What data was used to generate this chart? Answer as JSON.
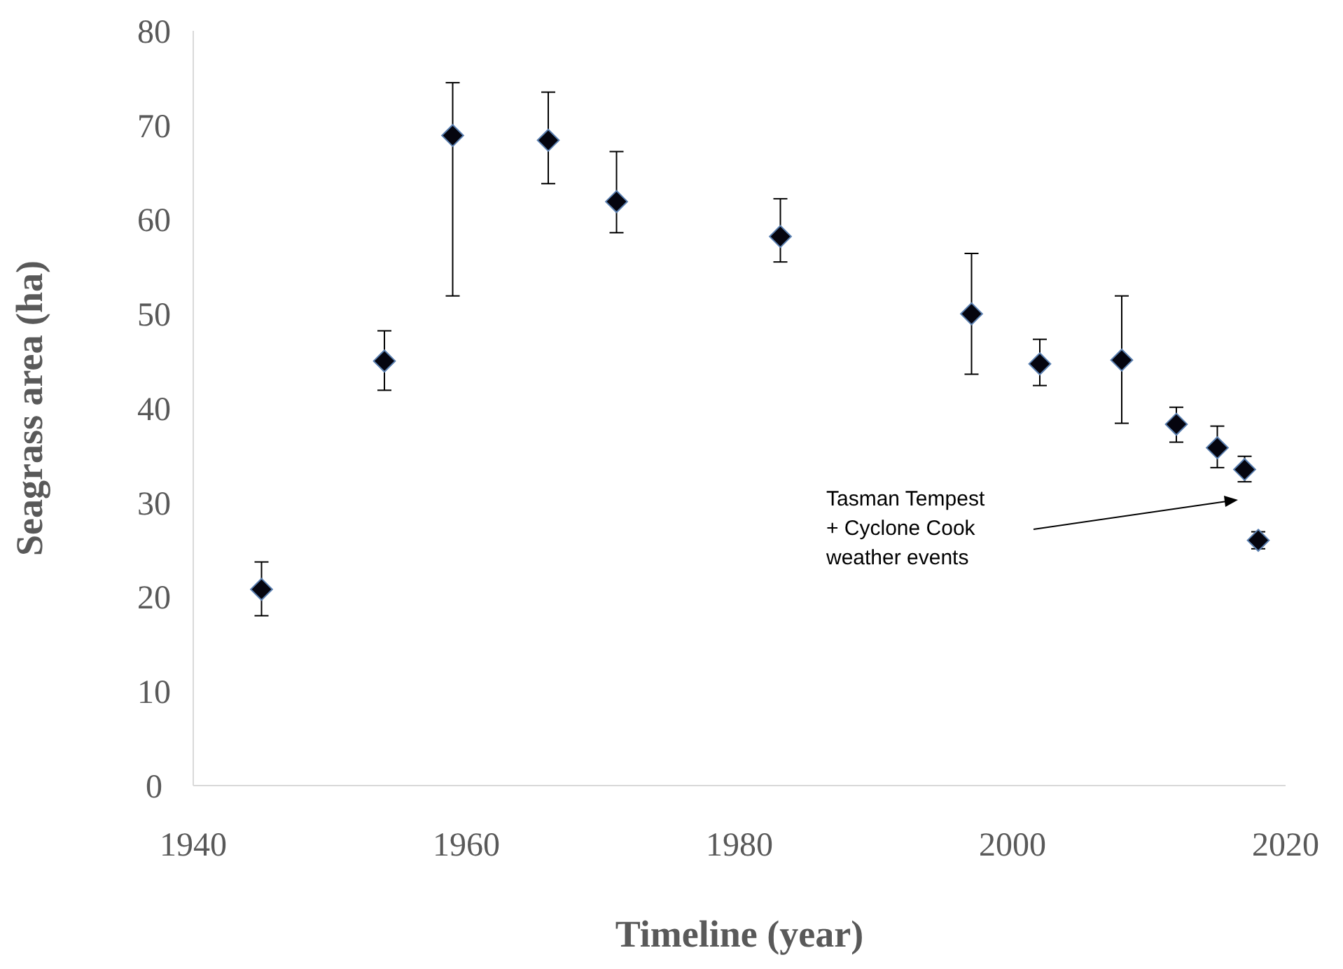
{
  "chart_data": {
    "type": "scatter",
    "xlabel": "Timeline (year)",
    "ylabel": "Seagrass area (ha)",
    "x": [
      1945,
      1954,
      1959,
      1966,
      1971,
      1983,
      1997,
      2002,
      2008,
      2012,
      2015,
      2017,
      2018
    ],
    "series": [
      {
        "color": "#05050f",
        "values": [
          20.8,
          45.0,
          68.9,
          68.4,
          61.9,
          58.2,
          50.0,
          44.7,
          45.1,
          38.3,
          35.8,
          33.5,
          26.0
        ],
        "errors": [
          [
            18.0,
            23.7
          ],
          [
            41.9,
            48.2
          ],
          [
            51.9,
            74.5
          ],
          [
            63.8,
            73.5
          ],
          [
            58.6,
            67.2
          ],
          [
            55.5,
            62.2
          ],
          [
            43.6,
            56.4
          ],
          [
            42.4,
            47.3
          ],
          [
            38.4,
            51.9
          ],
          [
            36.4,
            40.1
          ],
          [
            33.7,
            38.1
          ],
          [
            32.2,
            34.9
          ],
          [
            25.1,
            26.9
          ]
        ]
      }
    ],
    "xlim": [
      1940,
      2020
    ],
    "xticks": [
      1940,
      1960,
      1980,
      2000,
      2020
    ],
    "ylim": [
      0,
      80
    ],
    "yticks": [
      0,
      10,
      20,
      30,
      40,
      50,
      60,
      70,
      80
    ],
    "grid": false,
    "marker": "diamond",
    "annotations": [
      "Tasman Tempest\n+ Cyclone Cook\nweather events"
    ]
  }
}
